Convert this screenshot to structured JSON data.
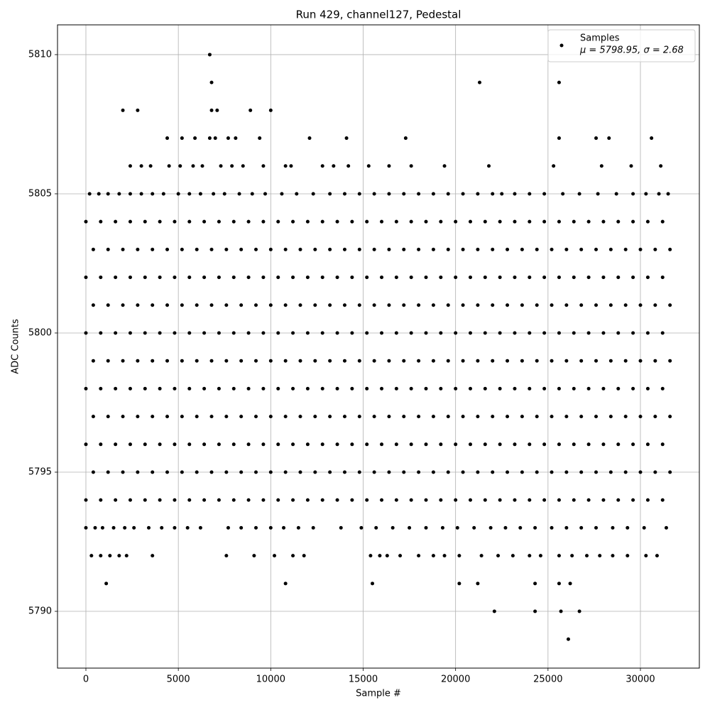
{
  "chart_data": {
    "type": "scatter",
    "title": "Run 429, channel127, Pedestal",
    "xlabel": "Sample #",
    "ylabel": "ADC Counts",
    "xlim": [
      -1536,
      33188
    ],
    "ylim": [
      5787.96,
      5811.07
    ],
    "xticks": [
      0,
      5000,
      10000,
      15000,
      20000,
      25000,
      30000
    ],
    "yticks": [
      5790,
      5795,
      5800,
      5805,
      5810
    ],
    "grid": true,
    "legend": "upper right",
    "annotation": "μ = 5798.95, σ = 2.68",
    "x": [
      0,
      800,
      1600,
      2400,
      3200,
      4000,
      4800,
      5600,
      6400,
      7200,
      8000,
      8800,
      9600,
      10400,
      11200,
      12000,
      12800,
      13600,
      14400,
      15200,
      16000,
      16800,
      17600,
      18400,
      19200,
      20000,
      20800,
      21600,
      22400,
      23200,
      24000,
      24800,
      25600,
      26400,
      27200,
      28000,
      28800,
      29600,
      30400,
      31200,
      400,
      1200,
      2000,
      2800,
      3600,
      4400,
      5200,
      6000,
      6800,
      7600,
      8400,
      9200,
      10000,
      10800,
      11600,
      12400,
      13200,
      14000,
      14800,
      15600,
      16400,
      17200,
      18000,
      18800,
      19600,
      20400,
      21200,
      22000,
      22800,
      23600,
      24400,
      25200,
      26000,
      26800,
      27600,
      28400,
      29200,
      30000,
      30800,
      31600,
      0,
      800,
      1600,
      2400,
      3200,
      4000,
      4800,
      5600,
      6400,
      7200,
      8000,
      8800,
      9600,
      10400,
      11200,
      12000,
      12800,
      13600,
      14400,
      15200,
      16000,
      16800,
      17600,
      18400,
      19200,
      20000,
      20800,
      21600,
      22400,
      23200,
      24000,
      24800,
      25600,
      26400,
      27200,
      28000,
      28800,
      29600,
      30400,
      31200,
      400,
      1200,
      2000,
      2800,
      3600,
      4400,
      5200,
      6000,
      6800,
      7600,
      8400,
      9200,
      10000,
      10800,
      11600,
      12400,
      13200,
      14000,
      14800,
      15600,
      16400,
      17200,
      18000,
      18800,
      19600,
      20400,
      21200,
      22000,
      22800,
      23600,
      24400,
      25200,
      26000,
      26800,
      27600,
      28400,
      29200,
      30000,
      30800,
      31600,
      0,
      800,
      1600,
      2400,
      3200,
      4000,
      4800,
      5600,
      6400,
      7200,
      8000,
      8800,
      9600,
      10400,
      11200,
      12000,
      12800,
      13600,
      14400,
      15200,
      16000,
      16800,
      17600,
      18400,
      19200,
      20000,
      20800,
      21600,
      22400,
      23200,
      24000,
      24800,
      25600,
      26400,
      27200,
      28000,
      28800,
      29600,
      30400,
      31200,
      400,
      1200,
      2000,
      2800,
      3600,
      4400,
      5200,
      6000,
      6800,
      7600,
      8400,
      9200,
      10000,
      10800,
      11600,
      12400,
      13200,
      14000,
      14800,
      15600,
      16400,
      17200,
      18000,
      18800,
      19600,
      20400,
      21200,
      22000,
      22800,
      23600,
      24400,
      25200,
      26000,
      26800,
      27600,
      28400,
      29200,
      30000,
      30800,
      31600,
      0,
      800,
      1600,
      2400,
      3200,
      4000,
      4800,
      5600,
      6400,
      7200,
      8000,
      8800,
      9600,
      10400,
      11200,
      12000,
      12800,
      13600,
      14400,
      15200,
      16000,
      16800,
      17600,
      18400,
      19200,
      20000,
      20800,
      21600,
      22400,
      23200,
      24000,
      24800,
      25600,
      26400,
      27200,
      28000,
      28800,
      29600,
      30400,
      31200,
      400,
      1200,
      2000,
      2800,
      3600,
      4400,
      5200,
      6000,
      6800,
      7600,
      8400,
      9200,
      10000,
      10800,
      11600,
      12400,
      13200,
      14000,
      14800,
      15600,
      16400,
      17200,
      18000,
      18800,
      19600,
      20400,
      21200,
      22000,
      22800,
      23600,
      24400,
      25200,
      26000,
      26800,
      27600,
      28400,
      29200,
      30000,
      30800,
      31600,
      0,
      800,
      1600,
      2400,
      3200,
      4000,
      4800,
      5600,
      6400,
      7200,
      8000,
      8800,
      9600,
      10400,
      11200,
      12000,
      12800,
      13600,
      14400,
      15200,
      16000,
      16800,
      17600,
      18400,
      19200,
      20000,
      20800,
      21600,
      22400,
      23200,
      24000,
      24800,
      25600,
      26400,
      27200,
      28000,
      28800,
      29600,
      30400,
      31200,
      400,
      1200,
      2000,
      2800,
      3600,
      4400,
      5200,
      6000,
      6800,
      7600,
      8400,
      9200,
      10000,
      10800,
      11600,
      12400,
      13200,
      14000,
      14800,
      15600,
      16400,
      17200,
      18000,
      18800,
      19600,
      20400,
      21200,
      22000,
      22800,
      23600,
      24400,
      25200,
      26000,
      26800,
      27600,
      28400,
      29200,
      30000,
      30800,
      31600,
      0,
      800,
      1600,
      2400,
      3200,
      4000,
      4800,
      5600,
      6400,
      7200,
      8000,
      8800,
      9600,
      10400,
      11200,
      12000,
      12800,
      13600,
      14400,
      15200,
      16000,
      16800,
      17600,
      18400,
      19200,
      20000,
      20800,
      21600,
      22400,
      23200,
      24000,
      24800,
      25600,
      26400,
      27200,
      28000,
      28800,
      29600,
      30400,
      31200,
      6700,
      6800,
      21300,
      25600,
      2000,
      2800,
      6800,
      7100,
      8900,
      10000,
      4400,
      5200,
      5900,
      6700,
      7000,
      7700,
      8100,
      9400,
      12100,
      14100,
      17300,
      25600,
      27600,
      28300,
      30600,
      2400,
      3000,
      3500,
      4500,
      5100,
      5800,
      6300,
      7300,
      7900,
      8500,
      9600,
      10800,
      11100,
      12800,
      13400,
      14200,
      15300,
      16400,
      17600,
      19400,
      21800,
      25300,
      27900,
      29500,
      31100,
      200,
      700,
      1200,
      1800,
      2400,
      3000,
      3600,
      4200,
      5000,
      5600,
      6200,
      6900,
      7500,
      8300,
      9000,
      9700,
      10600,
      11400,
      12300,
      13200,
      14000,
      14800,
      15600,
      16400,
      17200,
      18000,
      18800,
      19600,
      20400,
      21200,
      22000,
      22500,
      23200,
      24000,
      24800,
      25800,
      26700,
      27700,
      28700,
      29600,
      30300,
      31000,
      31500,
      0,
      500,
      900,
      1500,
      2100,
      2600,
      3400,
      4100,
      4800,
      5500,
      6200,
      7700,
      8400,
      9200,
      10000,
      10700,
      11500,
      12300,
      13800,
      14900,
      15700,
      16600,
      17500,
      18400,
      19300,
      20100,
      21000,
      21900,
      22700,
      23500,
      24300,
      25200,
      26000,
      26800,
      27600,
      28500,
      29300,
      30200,
      31400,
      300,
      800,
      1300,
      1800,
      2200,
      3600,
      7600,
      9100,
      10200,
      11200,
      11800,
      15400,
      15900,
      16300,
      17000,
      18000,
      18800,
      19400,
      20200,
      21400,
      22300,
      23100,
      24000,
      24600,
      25600,
      26300,
      27100,
      27800,
      28500,
      29300,
      30300,
      30900,
      1100,
      10800,
      15500,
      20200,
      21200,
      24300,
      25600,
      26200,
      22100,
      24300,
      25700,
      26700,
      26100
    ],
    "series": [
      {
        "name": "Samples",
        "color": "#000000",
        "values": [
          5794,
          5794,
          5794,
          5794,
          5794,
          5794,
          5794,
          5794,
          5794,
          5794,
          5794,
          5794,
          5794,
          5794,
          5794,
          5794,
          5794,
          5794,
          5794,
          5794,
          5794,
          5794,
          5794,
          5794,
          5794,
          5794,
          5794,
          5794,
          5794,
          5794,
          5794,
          5794,
          5794,
          5794,
          5794,
          5794,
          5794,
          5794,
          5794,
          5794,
          5795,
          5795,
          5795,
          5795,
          5795,
          5795,
          5795,
          5795,
          5795,
          5795,
          5795,
          5795,
          5795,
          5795,
          5795,
          5795,
          5795,
          5795,
          5795,
          5795,
          5795,
          5795,
          5795,
          5795,
          5795,
          5795,
          5795,
          5795,
          5795,
          5795,
          5795,
          5795,
          5795,
          5795,
          5795,
          5795,
          5795,
          5795,
          5795,
          5795,
          5796,
          5796,
          5796,
          5796,
          5796,
          5796,
          5796,
          5796,
          5796,
          5796,
          5796,
          5796,
          5796,
          5796,
          5796,
          5796,
          5796,
          5796,
          5796,
          5796,
          5796,
          5796,
          5796,
          5796,
          5796,
          5796,
          5796,
          5796,
          5796,
          5796,
          5796,
          5796,
          5796,
          5796,
          5796,
          5796,
          5796,
          5796,
          5796,
          5796,
          5797,
          5797,
          5797,
          5797,
          5797,
          5797,
          5797,
          5797,
          5797,
          5797,
          5797,
          5797,
          5797,
          5797,
          5797,
          5797,
          5797,
          5797,
          5797,
          5797,
          5797,
          5797,
          5797,
          5797,
          5797,
          5797,
          5797,
          5797,
          5797,
          5797,
          5797,
          5797,
          5797,
          5797,
          5797,
          5797,
          5797,
          5797,
          5797,
          5797,
          5798,
          5798,
          5798,
          5798,
          5798,
          5798,
          5798,
          5798,
          5798,
          5798,
          5798,
          5798,
          5798,
          5798,
          5798,
          5798,
          5798,
          5798,
          5798,
          5798,
          5798,
          5798,
          5798,
          5798,
          5798,
          5798,
          5798,
          5798,
          5798,
          5798,
          5798,
          5798,
          5798,
          5798,
          5798,
          5798,
          5798,
          5798,
          5798,
          5798,
          5799,
          5799,
          5799,
          5799,
          5799,
          5799,
          5799,
          5799,
          5799,
          5799,
          5799,
          5799,
          5799,
          5799,
          5799,
          5799,
          5799,
          5799,
          5799,
          5799,
          5799,
          5799,
          5799,
          5799,
          5799,
          5799,
          5799,
          5799,
          5799,
          5799,
          5799,
          5799,
          5799,
          5799,
          5799,
          5799,
          5799,
          5799,
          5799,
          5799,
          5800,
          5800,
          5800,
          5800,
          5800,
          5800,
          5800,
          5800,
          5800,
          5800,
          5800,
          5800,
          5800,
          5800,
          5800,
          5800,
          5800,
          5800,
          5800,
          5800,
          5800,
          5800,
          5800,
          5800,
          5800,
          5800,
          5800,
          5800,
          5800,
          5800,
          5800,
          5800,
          5800,
          5800,
          5800,
          5800,
          5800,
          5800,
          5800,
          5800,
          5801,
          5801,
          5801,
          5801,
          5801,
          5801,
          5801,
          5801,
          5801,
          5801,
          5801,
          5801,
          5801,
          5801,
          5801,
          5801,
          5801,
          5801,
          5801,
          5801,
          5801,
          5801,
          5801,
          5801,
          5801,
          5801,
          5801,
          5801,
          5801,
          5801,
          5801,
          5801,
          5801,
          5801,
          5801,
          5801,
          5801,
          5801,
          5801,
          5801,
          5802,
          5802,
          5802,
          5802,
          5802,
          5802,
          5802,
          5802,
          5802,
          5802,
          5802,
          5802,
          5802,
          5802,
          5802,
          5802,
          5802,
          5802,
          5802,
          5802,
          5802,
          5802,
          5802,
          5802,
          5802,
          5802,
          5802,
          5802,
          5802,
          5802,
          5802,
          5802,
          5802,
          5802,
          5802,
          5802,
          5802,
          5802,
          5802,
          5802,
          5803,
          5803,
          5803,
          5803,
          5803,
          5803,
          5803,
          5803,
          5803,
          5803,
          5803,
          5803,
          5803,
          5803,
          5803,
          5803,
          5803,
          5803,
          5803,
          5803,
          5803,
          5803,
          5803,
          5803,
          5803,
          5803,
          5803,
          5803,
          5803,
          5803,
          5803,
          5803,
          5803,
          5803,
          5803,
          5803,
          5803,
          5803,
          5803,
          5803,
          5804,
          5804,
          5804,
          5804,
          5804,
          5804,
          5804,
          5804,
          5804,
          5804,
          5804,
          5804,
          5804,
          5804,
          5804,
          5804,
          5804,
          5804,
          5804,
          5804,
          5804,
          5804,
          5804,
          5804,
          5804,
          5804,
          5804,
          5804,
          5804,
          5804,
          5804,
          5804,
          5804,
          5804,
          5804,
          5804,
          5804,
          5804,
          5804,
          5804,
          5810,
          5809,
          5809,
          5809,
          5808,
          5808,
          5808,
          5808,
          5808,
          5808,
          5807,
          5807,
          5807,
          5807,
          5807,
          5807,
          5807,
          5807,
          5807,
          5807,
          5807,
          5807,
          5807,
          5807,
          5807,
          5806,
          5806,
          5806,
          5806,
          5806,
          5806,
          5806,
          5806,
          5806,
          5806,
          5806,
          5806,
          5806,
          5806,
          5806,
          5806,
          5806,
          5806,
          5806,
          5806,
          5806,
          5806,
          5806,
          5806,
          5806,
          5805,
          5805,
          5805,
          5805,
          5805,
          5805,
          5805,
          5805,
          5805,
          5805,
          5805,
          5805,
          5805,
          5805,
          5805,
          5805,
          5805,
          5805,
          5805,
          5805,
          5805,
          5805,
          5805,
          5805,
          5805,
          5805,
          5805,
          5805,
          5805,
          5805,
          5805,
          5805,
          5805,
          5805,
          5805,
          5805,
          5805,
          5805,
          5805,
          5805,
          5805,
          5805,
          5805,
          5793,
          5793,
          5793,
          5793,
          5793,
          5793,
          5793,
          5793,
          5793,
          5793,
          5793,
          5793,
          5793,
          5793,
          5793,
          5793,
          5793,
          5793,
          5793,
          5793,
          5793,
          5793,
          5793,
          5793,
          5793,
          5793,
          5793,
          5793,
          5793,
          5793,
          5793,
          5793,
          5793,
          5793,
          5793,
          5793,
          5793,
          5793,
          5793,
          5792,
          5792,
          5792,
          5792,
          5792,
          5792,
          5792,
          5792,
          5792,
          5792,
          5792,
          5792,
          5792,
          5792,
          5792,
          5792,
          5792,
          5792,
          5792,
          5792,
          5792,
          5792,
          5792,
          5792,
          5792,
          5792,
          5792,
          5792,
          5792,
          5792,
          5792,
          5792,
          5791,
          5791,
          5791,
          5791,
          5791,
          5791,
          5791,
          5791,
          5790,
          5790,
          5790,
          5790,
          5789
        ]
      }
    ]
  }
}
